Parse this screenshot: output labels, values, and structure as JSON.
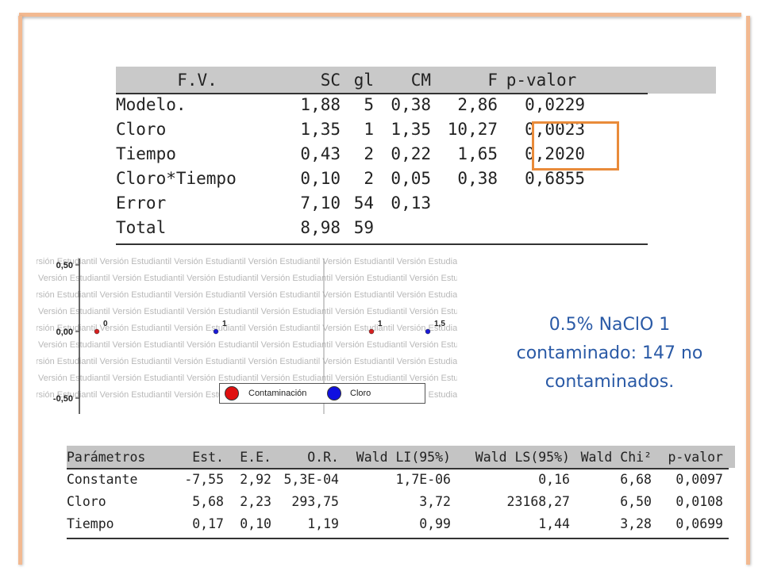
{
  "anova": {
    "headers": [
      "F.V.",
      "SC",
      "gl",
      "CM",
      "F",
      "p-valor"
    ],
    "rows": [
      [
        "Modelo.",
        "1,88",
        "5",
        "0,38",
        "2,86",
        "0,0229"
      ],
      [
        "Cloro",
        "1,35",
        "1",
        "1,35",
        "10,27",
        "0,0023"
      ],
      [
        "Tiempo",
        "0,43",
        "2",
        "0,22",
        "1,65",
        "0,2020"
      ],
      [
        "Cloro*Tiempo",
        "0,10",
        "2",
        "0,05",
        "0,38",
        "0,6855"
      ],
      [
        "Error",
        "7,10",
        "54",
        "0,13",
        "",
        ""
      ],
      [
        "Total",
        "8,98",
        "59",
        "",
        "",
        ""
      ]
    ],
    "highlight_color": "#e98b3a"
  },
  "chart_data": {
    "type": "scatter",
    "y_ticks": [
      "0,50",
      "0,00",
      "-0,50"
    ],
    "ylim": [
      -0.5,
      0.5
    ],
    "points": [
      {
        "label": "0",
        "group": "Contaminación",
        "color": "#d62020",
        "y": 0.0
      },
      {
        "label": "1",
        "group": "Cloro",
        "color": "#1a1ad6",
        "y": 0.0
      },
      {
        "label": "1",
        "group": "Contaminación",
        "color": "#d62020",
        "y": 0.0
      },
      {
        "label": "1,5",
        "group": "Cloro",
        "color": "#1a1ad6",
        "y": 0.0
      }
    ],
    "legend": [
      {
        "name": "Contaminación",
        "color": "#e01010"
      },
      {
        "name": "Cloro",
        "color": "#1010e0"
      }
    ],
    "watermark": "Versión Estudiantil"
  },
  "note": {
    "line1": "0.5% NaClO  1",
    "line2": "contaminado: 147 no",
    "line3": "contaminados."
  },
  "logit": {
    "headers": [
      "Parámetros",
      "Est.",
      "E.E.",
      "O.R.",
      "Wald LI(95%)",
      "Wald LS(95%)",
      "Wald Chi²",
      "p-valor"
    ],
    "rows": [
      [
        "Constante",
        "-7,55",
        "2,92",
        "5,3E-04",
        "1,7E-06",
        "0,16",
        "6,68",
        "0,0097"
      ],
      [
        "Cloro",
        "5,68",
        "2,23",
        "293,75",
        "3,72",
        "23168,27",
        "6,50",
        "0,0108"
      ],
      [
        "Tiempo",
        "0,17",
        "0,10",
        "1,19",
        "0,99",
        "1,44",
        "3,28",
        "0,0699"
      ]
    ]
  },
  "colors": {
    "frame": "#f2b991",
    "note_text": "#2a5aa6",
    "header_band": "#c9c9c9"
  }
}
